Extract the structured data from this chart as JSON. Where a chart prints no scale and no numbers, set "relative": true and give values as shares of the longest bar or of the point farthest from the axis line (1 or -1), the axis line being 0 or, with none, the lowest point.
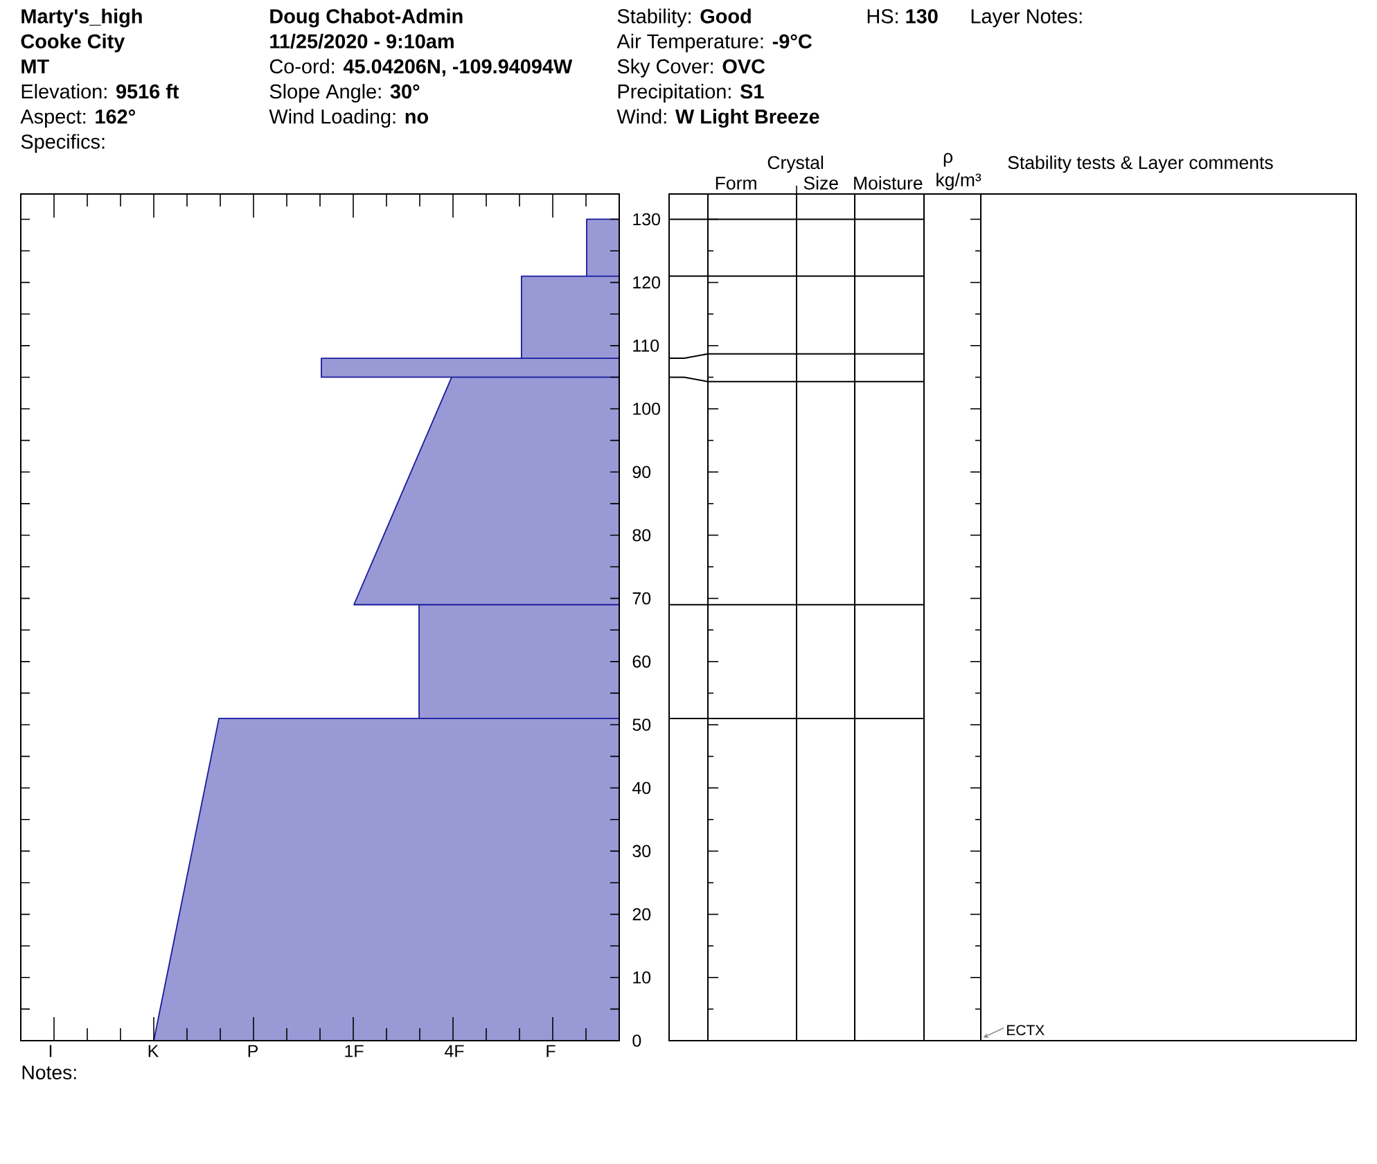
{
  "chart_data": {
    "type": "area",
    "orientation": "horizontal",
    "relative": true,
    "x": [
      0,
      51,
      51,
      69,
      69,
      105,
      105,
      108,
      108,
      121,
      121,
      130
    ],
    "values": [
      -1,
      -0.86,
      -0.43,
      -0.43,
      -0.57,
      -0.36,
      -0.64,
      -0.64,
      -0.21,
      -0.21,
      -0.07,
      -0.07
    ],
    "color": "#9999d6",
    "ylim": [
      0,
      134
    ],
    "yticks": [
      0,
      {
        "value": 5,
        "label": null
      },
      10,
      {
        "value": 15,
        "label": null
      },
      20,
      {
        "value": 25,
        "label": null
      },
      30,
      {
        "value": 35,
        "label": null
      },
      40,
      {
        "value": 45,
        "label": null
      },
      50,
      {
        "value": 55,
        "label": null
      },
      60,
      {
        "value": 65,
        "label": null
      },
      70,
      {
        "value": 75,
        "label": null
      },
      80,
      {
        "value": 85,
        "label": null
      },
      90,
      {
        "value": 95,
        "label": null
      },
      100,
      {
        "value": 105,
        "label": null
      },
      110,
      {
        "value": 115,
        "label": null
      },
      120,
      {
        "value": 125,
        "label": null
      },
      130
    ],
    "annotations": [
      "Marty's_high",
      "Cooke City",
      "MT",
      "Elevation: **9516 ft**",
      "Aspect: **162°**",
      "Specifics:",
      "Doug Chabot-Admin",
      "11/25/2020 - 9:10am",
      "Co-ord: **45.04206N, -109.94094W**",
      "Slope Angle: **30°**",
      "Wind Loading: **no**",
      "Stability: **Good**",
      "Air Temperature: **-9°C**",
      "Sky Cover: **OVC**",
      "Precipitation: **S1**",
      "Wind:  **W Light Breeze**",
      "HS: **130**",
      "Layer Notes:",
      "Crystal",
      "Form",
      "Size",
      "Moisture",
      "ρ",
      "kg/m³",
      "Stability tests & Layer comments",
      "ECTX",
      "I",
      "K",
      "P",
      "1F",
      "4F",
      "F",
      "Notes:"
    ]
  }
}
